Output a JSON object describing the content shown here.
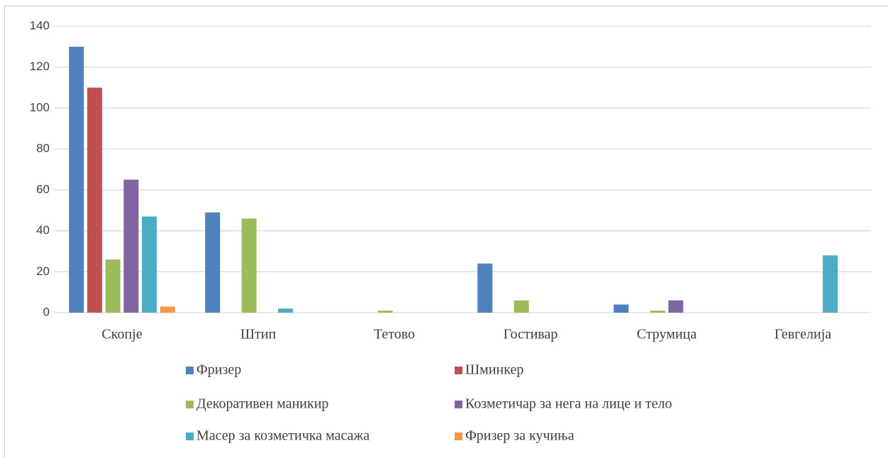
{
  "chart_data": {
    "type": "bar",
    "categories": [
      "Скопје",
      "Штип",
      "Тетово",
      "Гостивар",
      "Струмица",
      "Гевгелија"
    ],
    "series": [
      {
        "name": "Фризер",
        "color": "#4f81bd",
        "values": [
          130,
          49,
          0,
          24,
          4,
          0
        ]
      },
      {
        "name": "Шминкер",
        "color": "#c0504d",
        "values": [
          110,
          0,
          0,
          0,
          0,
          0
        ]
      },
      {
        "name": "Декоративен маникир",
        "color": "#9bbb59",
        "values": [
          26,
          46,
          1,
          6,
          1,
          0
        ]
      },
      {
        "name": "Козметичар за нега на лице и тело",
        "color": "#8064a2",
        "values": [
          65,
          0,
          0,
          0,
          6,
          0
        ]
      },
      {
        "name": "Масер за козметичка масажа",
        "color": "#4bacc6",
        "values": [
          47,
          2,
          0,
          0,
          0,
          28
        ]
      },
      {
        "name": "Фризер за кучиња",
        "color": "#f79646",
        "values": [
          3,
          0,
          0,
          0,
          0,
          0
        ]
      }
    ],
    "ylim": [
      0,
      140
    ],
    "yticks": [
      0,
      20,
      40,
      60,
      80,
      100,
      120,
      140
    ],
    "grid": true,
    "legend": "bottom"
  }
}
